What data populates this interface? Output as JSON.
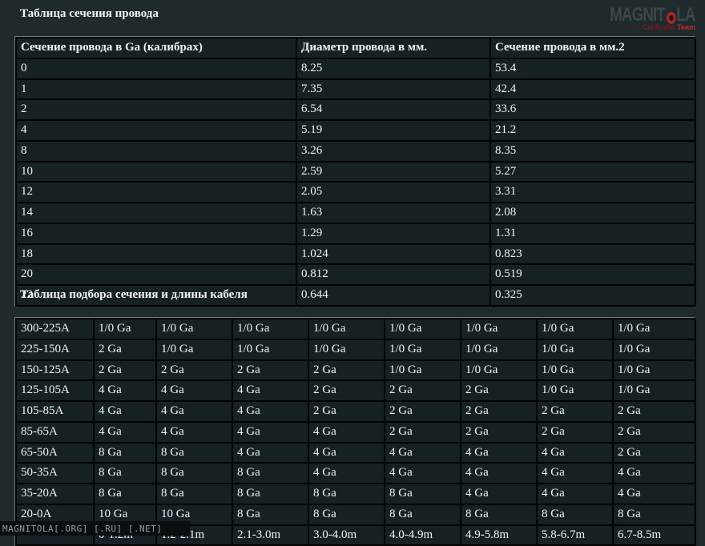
{
  "sections": {
    "wire_table_title": "Таблица сечения провода",
    "cable_table_title": "Таблица подбора сечения и длины кабеля"
  },
  "logo": {
    "text_left": "MAGNIT",
    "text_right": "LA",
    "speaker_icon": "red-circle-speaker",
    "subtitle_left": "CarAudio",
    "subtitle_right": "Team",
    "accent_red": "#c2282c",
    "letter_color": "#3d4749"
  },
  "wire_gauge_table": {
    "headers": [
      "Сечение провода в Ga (калибрах)",
      "Диаметр провода в мм.",
      "Сечение провода в мм.2"
    ],
    "rows": [
      [
        "0",
        "8.25",
        "53.4"
      ],
      [
        "1",
        "7.35",
        "42.4"
      ],
      [
        "2",
        "6.54",
        "33.6"
      ],
      [
        "4",
        "5.19",
        "21.2"
      ],
      [
        "8",
        "3.26",
        "8.35"
      ],
      [
        "10",
        "2.59",
        "5.27"
      ],
      [
        "12",
        "2.05",
        "3.31"
      ],
      [
        "14",
        "1.63",
        "2.08"
      ],
      [
        "16",
        "1.29",
        "1.31"
      ],
      [
        "18",
        "1.024",
        "0.823"
      ],
      [
        "20",
        "0.812",
        "0.519"
      ],
      [
        "22",
        "0.644",
        "0.325"
      ]
    ]
  },
  "cable_selection_table": {
    "rows": [
      [
        "300-225A",
        "1/0 Ga",
        "1/0 Ga",
        "1/0 Ga",
        "1/0 Ga",
        "1/0 Ga",
        "1/0 Ga",
        "1/0 Ga",
        "1/0 Ga"
      ],
      [
        "225-150A",
        "2 Ga",
        "1/0 Ga",
        "1/0 Ga",
        "1/0 Ga",
        "1/0 Ga",
        "1/0 Ga",
        "1/0 Ga",
        "1/0 Ga"
      ],
      [
        "150-125A",
        "2 Ga",
        "2 Ga",
        "2 Ga",
        "2 Ga",
        "1/0 Ga",
        "1/0 Ga",
        "1/0 Ga",
        "1/0 Ga"
      ],
      [
        "125-105A",
        "4 Ga",
        "4 Ga",
        "4 Ga",
        "2 Ga",
        "2 Ga",
        "2 Ga",
        "1/0 Ga",
        "1/0 Ga"
      ],
      [
        "105-85A",
        "4 Ga",
        "4 Ga",
        "4 Ga",
        "2 Ga",
        "2 Ga",
        "2 Ga",
        "2 Ga",
        "2 Ga"
      ],
      [
        "85-65A",
        "4 Ga",
        "4 Ga",
        "4 Ga",
        "4 Ga",
        "2 Ga",
        "2 Ga",
        "2 Ga",
        "2 Ga"
      ],
      [
        "65-50A",
        "8 Ga",
        "8 Ga",
        "4 Ga",
        "4 Ga",
        "4 Ga",
        "4 Ga",
        "4 Ga",
        "2 Ga"
      ],
      [
        "50-35A",
        "8 Ga",
        "8 Ga",
        "8 Ga",
        "4 Ga",
        "4 Ga",
        "4 Ga",
        "4 Ga",
        "4 Ga"
      ],
      [
        "35-20A",
        "8 Ga",
        "8 Ga",
        "8 Ga",
        "8 Ga",
        "8 Ga",
        "4 Ga",
        "4 Ga",
        "4 Ga"
      ],
      [
        "20-0A",
        "10 Ga",
        "10 Ga",
        "8 Ga",
        "8 Ga",
        "8 Ga",
        "8 Ga",
        "8 Ga",
        "8 Ga"
      ],
      [
        "",
        "0-1.2m",
        "1.2-2.1m",
        "2.1-3.0m",
        "3.0-4.0m",
        "4.0-4.9m",
        "4.9-5.8m",
        "5.8-6.7m",
        "6.7-8.5m"
      ]
    ]
  },
  "footer": {
    "watermark": "MAGNITOLA[.ORG] [.RU] [.NET]"
  },
  "colors": {
    "background": "#1f2a2c",
    "cell_background": "#162124",
    "border": "#000000",
    "text": "#f2f5f5"
  }
}
